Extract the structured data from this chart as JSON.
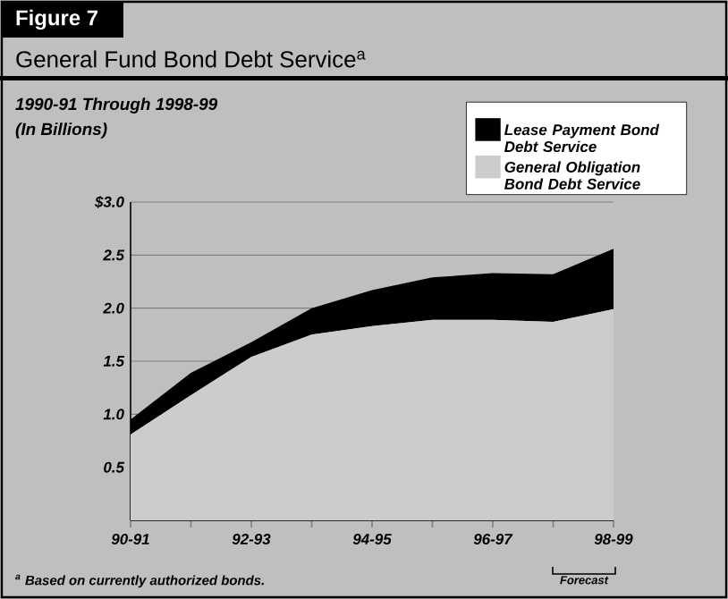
{
  "chart_data": {
    "type": "area",
    "stacked": true,
    "title": "General Fund Bond Debt Service$^{a}$",
    "subtitle": "1990-91 Through 1998-99",
    "ylabel": "(In Billions)",
    "annotations": [
      "Figure 7",
      "$^{a}$ Based on currently authorized bonds.",
      "Forecast"
    ],
    "categories": [
      "90-91",
      null,
      "92-93",
      null,
      "94-95",
      null,
      "96-97",
      null,
      "98-99"
    ],
    "series": [
      {
        "name": "General Obligation Bond Debt Service",
        "color": "#cccccc",
        "values": [
          0.81,
          1.18,
          1.54,
          1.75,
          1.83,
          1.89,
          1.89,
          1.87,
          1.99
        ]
      },
      {
        "name": "Lease Payment Bond Debt Service",
        "color": "#000000",
        "values": [
          0.14,
          0.21,
          0.14,
          0.25,
          0.34,
          0.4,
          0.44,
          0.45,
          0.57
        ]
      }
    ],
    "ylim": [
      0,
      3
    ],
    "yticks": [
      {
        "value": 0.5,
        "label": "0.5"
      },
      {
        "value": 1,
        "label": "1.0"
      },
      {
        "value": 1.5,
        "label": "1.5"
      },
      {
        "value": 2,
        "label": "2.0"
      },
      {
        "value": 2.5,
        "label": "2.5"
      },
      {
        "value": 3,
        "label": "$3.0"
      }
    ],
    "grid": "y",
    "legend": "top right"
  }
}
